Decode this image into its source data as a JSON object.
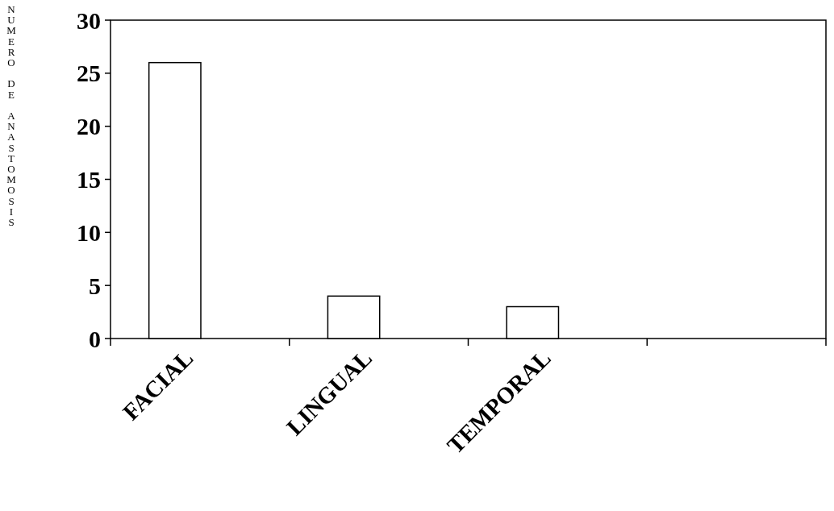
{
  "chart_data": {
    "type": "bar",
    "ylabel": "NUMERO DE ANASTOMOSIS",
    "categories": [
      "FACIAL",
      "LINGUAL",
      "TEMPORAL",
      null
    ],
    "values": [
      26,
      4,
      3,
      0
    ],
    "color": "#ffffff",
    "ylim": [
      0,
      30
    ],
    "yticks": [
      0,
      5,
      10,
      15,
      20,
      25,
      30
    ],
    "grid": false
  }
}
